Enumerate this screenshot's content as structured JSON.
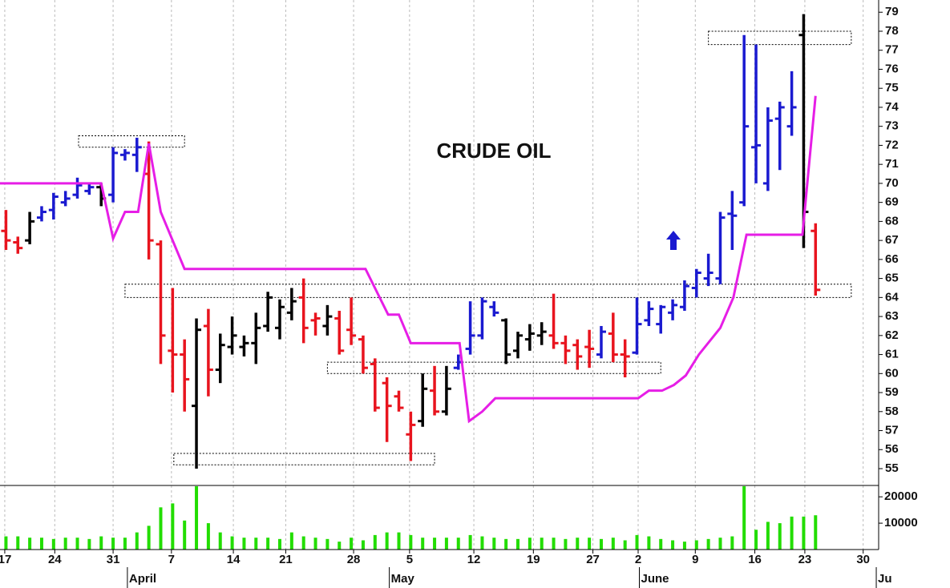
{
  "chart_data": [
    {
      "type": "ohlc",
      "title": "CRUDE OIL",
      "x": [
        0,
        1,
        2,
        3,
        4,
        5,
        6,
        7,
        8,
        9,
        10,
        11,
        12,
        13,
        14,
        15,
        16,
        17,
        18,
        19,
        20,
        21,
        22,
        23,
        24,
        25,
        26,
        27,
        28,
        29,
        30,
        31,
        32,
        33,
        34,
        35,
        36,
        37,
        38,
        39,
        40,
        41,
        42,
        43,
        44,
        45,
        46,
        47,
        48,
        49,
        50,
        51,
        52,
        53,
        54,
        55,
        56,
        57,
        58,
        59,
        60,
        61,
        62,
        63,
        64,
        65,
        66,
        67,
        68
      ],
      "open": [
        67.5,
        66.9,
        67.0,
        68.2,
        68.6,
        69.0,
        69.4,
        69.6,
        69.8,
        69.4,
        71.5,
        71.5,
        70.5,
        66.8,
        61.2,
        61.0,
        58.3,
        62.5,
        60.2,
        61.4,
        61.4,
        61.6,
        62.5,
        62.4,
        63.2,
        64.0,
        62.8,
        62.5,
        62.9,
        62.3,
        61.8,
        60.5,
        59.5,
        58.8,
        56.8,
        57.5,
        59.1,
        58.0,
        60.3,
        61.3,
        62.0,
        63.5,
        62.8,
        61.2,
        61.8,
        62.0,
        62.0,
        61.6,
        61.5,
        61.4,
        61.0,
        62.1,
        61.0,
        61.1,
        62.8,
        62.6,
        63.2,
        63.5,
        64.5,
        65.0,
        65.0,
        68.4,
        69.0,
        71.9,
        70.0,
        73.4,
        73.0,
        77.8,
        67.5
      ],
      "high": [
        68.6,
        67.2,
        68.5,
        68.8,
        69.5,
        69.6,
        70.3,
        70.0,
        70.0,
        71.9,
        71.8,
        72.4,
        72.2,
        67.0,
        64.5,
        61.8,
        62.9,
        63.4,
        62.1,
        63.0,
        62.0,
        63.2,
        64.3,
        63.9,
        64.5,
        65.0,
        63.2,
        63.6,
        63.3,
        64.0,
        62.0,
        60.8,
        59.8,
        59.1,
        58.0,
        60.0,
        60.4,
        60.4,
        61.0,
        63.8,
        64.0,
        63.8,
        62.9,
        62.2,
        62.6,
        62.7,
        64.2,
        62.0,
        61.8,
        62.3,
        62.5,
        63.2,
        61.8,
        64.0,
        63.8,
        63.6,
        63.9,
        64.9,
        65.5,
        66.3,
        68.5,
        69.6,
        77.8,
        77.3,
        74.0,
        74.3,
        75.9,
        78.9,
        67.9
      ],
      "low": [
        66.5,
        66.3,
        66.8,
        68.0,
        68.1,
        68.8,
        69.2,
        69.4,
        68.8,
        69.0,
        71.2,
        70.6,
        66.0,
        60.5,
        59.0,
        58.0,
        55.0,
        58.8,
        59.5,
        61.0,
        60.9,
        60.5,
        62.2,
        61.8,
        62.8,
        61.6,
        62.0,
        62.0,
        61.0,
        61.5,
        60.0,
        58.0,
        56.4,
        58.0,
        55.4,
        57.2,
        57.8,
        57.8,
        60.2,
        61.0,
        61.8,
        63.0,
        60.5,
        60.8,
        61.2,
        61.5,
        61.3,
        60.5,
        60.2,
        60.3,
        60.8,
        60.6,
        59.8,
        61.0,
        62.5,
        62.1,
        62.8,
        63.3,
        64.0,
        64.6,
        64.7,
        66.5,
        68.8,
        70.0,
        69.6,
        70.7,
        72.5,
        66.6,
        64.1
      ],
      "close": [
        67.0,
        66.6,
        68.0,
        68.5,
        69.3,
        69.2,
        69.9,
        69.8,
        69.2,
        71.6,
        71.6,
        71.9,
        67.0,
        62.0,
        61.0,
        59.7,
        62.3,
        60.2,
        61.5,
        62.0,
        61.6,
        62.4,
        64.0,
        63.5,
        63.8,
        62.4,
        62.9,
        63.0,
        61.2,
        62.0,
        60.3,
        58.2,
        58.3,
        58.2,
        57.3,
        59.2,
        58.0,
        59.2,
        60.6,
        62.0,
        63.8,
        63.2,
        61.0,
        62.0,
        62.1,
        62.2,
        61.6,
        61.2,
        60.9,
        61.3,
        62.2,
        61.0,
        60.9,
        62.6,
        63.4,
        63.5,
        63.6,
        64.6,
        65.3,
        65.3,
        68.2,
        68.3,
        73.0,
        72.0,
        73.3,
        74.0,
        74.0,
        68.5,
        64.4
      ],
      "bar_colors": [
        "#e8141e",
        "#e8141e",
        "#000000",
        "#1a1ad0",
        "#1a1ad0",
        "#1a1ad0",
        "#1a1ad0",
        "#1a1ad0",
        "#000000",
        "#1a1ad0",
        "#1a1ad0",
        "#1a1ad0",
        "#e8141e",
        "#e8141e",
        "#e8141e",
        "#e8141e",
        "#000000",
        "#e8141e",
        "#000000",
        "#000000",
        "#000000",
        "#000000",
        "#000000",
        "#000000",
        "#000000",
        "#e8141e",
        "#e8141e",
        "#000000",
        "#e8141e",
        "#e8141e",
        "#e8141e",
        "#e8141e",
        "#e8141e",
        "#e8141e",
        "#e8141e",
        "#000000",
        "#e8141e",
        "#000000",
        "#1a1ad0",
        "#1a1ad0",
        "#1a1ad0",
        "#1a1ad0",
        "#000000",
        "#000000",
        "#000000",
        "#000000",
        "#e8141e",
        "#e8141e",
        "#e8141e",
        "#e8141e",
        "#1a1ad0",
        "#e8141e",
        "#e8141e",
        "#1a1ad0",
        "#1a1ad0",
        "#1a1ad0",
        "#1a1ad0",
        "#1a1ad0",
        "#1a1ad0",
        "#1a1ad0",
        "#1a1ad0",
        "#1a1ad0",
        "#1a1ad0",
        "#1a1ad0",
        "#1a1ad0",
        "#1a1ad0",
        "#1a1ad0",
        "#000000",
        "#e8141e"
      ],
      "line": {
        "color": "#e61ee6",
        "x": [
          -0.5,
          8.0,
          9.0,
          10.0,
          11.1,
          12.0,
          13.0,
          15.0,
          30.2,
          32.1,
          33.0,
          34.0,
          38.1,
          38.9,
          40.0,
          41.1,
          53.1,
          54.0,
          55.1,
          56.1,
          57.1,
          58.2,
          60.0,
          61.1,
          62.2,
          66.9,
          68.0
        ],
        "values": [
          70.0,
          70.0,
          67.1,
          68.5,
          68.5,
          72.1,
          68.5,
          65.5,
          65.5,
          63.1,
          63.1,
          61.6,
          61.6,
          57.5,
          58.0,
          58.7,
          58.7,
          59.1,
          59.1,
          59.4,
          59.9,
          61.0,
          62.4,
          64.0,
          67.3,
          67.3,
          74.6
        ]
      },
      "zones": [
        {
          "x": [
            6.1,
            15.0
          ],
          "y": [
            71.9,
            72.5
          ]
        },
        {
          "x": [
            59.0,
            71.0
          ],
          "y": [
            77.3,
            78.0
          ]
        },
        {
          "x": [
            10.0,
            71.0
          ],
          "y": [
            64.0,
            64.7
          ]
        },
        {
          "x": [
            27.0,
            55.0
          ],
          "y": [
            60.0,
            60.6
          ]
        },
        {
          "x": [
            14.1,
            36.0
          ],
          "y": [
            55.2,
            55.8
          ]
        }
      ],
      "xlim": [
        -0.5,
        73.3
      ],
      "ylim": [
        54.2,
        79.6
      ],
      "yticks": [
        55,
        56,
        57,
        58,
        59,
        60,
        61,
        62,
        63,
        64,
        65,
        66,
        67,
        68,
        69,
        70,
        71,
        72,
        73,
        74,
        75,
        76,
        77,
        78,
        79
      ]
    },
    {
      "type": "bar",
      "color": "#22dd00",
      "values": [
        5000,
        5000,
        4500,
        4500,
        4000,
        4500,
        4500,
        4000,
        5000,
        4500,
        4500,
        6500,
        9000,
        16000,
        17500,
        11000,
        24000,
        10000,
        6500,
        5000,
        4500,
        4500,
        4500,
        4000,
        6500,
        5000,
        4500,
        4000,
        3000,
        4500,
        3500,
        5500,
        6500,
        6500,
        5500,
        4500,
        4500,
        4500,
        4500,
        5500,
        5000,
        4500,
        4000,
        4000,
        4500,
        4500,
        4500,
        4000,
        4500,
        4500,
        4000,
        4500,
        3500,
        5500,
        5000,
        4000,
        3500,
        3000,
        3500,
        4000,
        4500,
        5000,
        24000,
        7500,
        10500,
        10000,
        12500,
        12500,
        13000
      ],
      "ylim": [
        0,
        24000
      ],
      "yticks": [
        10000,
        20000
      ],
      "xlim": [
        -0.5,
        73.3
      ],
      "xticks": [
        {
          "value": -0.1,
          "label": "17"
        },
        {
          "value": 4.1,
          "label": "24"
        },
        {
          "value": 9.0,
          "label": "31"
        },
        {
          "value": 13.9,
          "label": "7"
        },
        {
          "value": 19.1,
          "label": "14"
        },
        {
          "value": 23.5,
          "label": "21"
        },
        {
          "value": 29.2,
          "label": "28"
        },
        {
          "value": 33.9,
          "label": "5"
        },
        {
          "value": 39.3,
          "label": "12"
        },
        {
          "value": 44.3,
          "label": "19"
        },
        {
          "value": 49.3,
          "label": "27"
        },
        {
          "value": 53.1,
          "label": "2"
        },
        {
          "value": 57.9,
          "label": "9"
        },
        {
          "value": 62.9,
          "label": "16"
        },
        {
          "value": 67.1,
          "label": "23"
        },
        {
          "value": 72.0,
          "label": "30"
        }
      ],
      "months": [
        {
          "value": 10.2,
          "label": "April"
        },
        {
          "value": 32.2,
          "label": "May"
        },
        {
          "value": 53.2,
          "label": "June"
        },
        {
          "value": 73.1,
          "label": "Ju"
        }
      ]
    }
  ]
}
